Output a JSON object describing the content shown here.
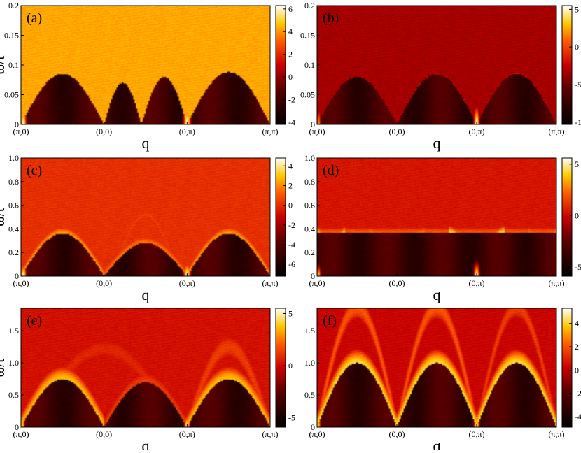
{
  "figure": {
    "x_tick_labels": [
      "(π,0)",
      "(0,0)",
      "(0,π)",
      "(π,π)"
    ],
    "x_label": "q",
    "y_label": "ω/t"
  },
  "chart_data": [
    {
      "type": "heatmap",
      "panel_label": "(a)",
      "xlabel": "q",
      "ylabel": "ω/t",
      "x_categories": [
        "(π,0)",
        "(0,0)",
        "(0,π)",
        "(π,π)"
      ],
      "ylim": [
        0,
        0.2
      ],
      "y_ticks": [
        0,
        0.05,
        0.1,
        0.15,
        0.2
      ],
      "y_tick_labels": [
        "0",
        "0.05",
        "0.1",
        "0.15",
        "0.2"
      ],
      "colorbar": {
        "range": [
          -4.2,
          6.3
        ],
        "ticks": [
          -4,
          -2,
          0,
          2,
          4,
          6
        ],
        "tick_labels": [
          "-4",
          "-2",
          "0",
          "2",
          "4",
          "6"
        ]
      },
      "background_level": 0.82,
      "curves": [
        {
          "kind": "dome",
          "x0": 0.0,
          "x1": 1.0,
          "peak": 0.085,
          "intensity": 0.85,
          "width": 0.003,
          "fill_below": 0.25
        },
        {
          "kind": "dome",
          "x0": 1.0,
          "x1": 1.45,
          "peak": 0.07,
          "intensity": 0.55,
          "width": 0.003,
          "fill_below": 0.3
        },
        {
          "kind": "dome",
          "x0": 1.45,
          "x1": 2.0,
          "peak": 0.08,
          "intensity": 0.8,
          "width": 0.003,
          "fill_below": 0.3
        },
        {
          "kind": "dome",
          "x0": 2.0,
          "x1": 3.0,
          "peak": 0.088,
          "intensity": 0.8,
          "width": 0.003,
          "fill_below": 0.28
        },
        {
          "kind": "dome",
          "x0": 0.15,
          "x1": 2.0,
          "peak": 0.15,
          "intensity": 0.45,
          "width": 0.004,
          "fill_below": 0
        },
        {
          "kind": "dome",
          "x0": 2.0,
          "x1": 3.0,
          "peak": 0.15,
          "intensity": 0.45,
          "width": 0.004,
          "fill_below": 0
        }
      ],
      "hot_spots": [
        {
          "x": 0.03,
          "intensity": 1.0,
          "width": 0.04,
          "height": 0.03
        },
        {
          "x": 2.0,
          "intensity": 1.0,
          "width": 0.05,
          "height": 0.035
        }
      ]
    },
    {
      "type": "heatmap",
      "panel_label": "(b)",
      "xlabel": "q",
      "ylabel": "",
      "x_categories": [
        "(π,0)",
        "(0,0)",
        "(0,π)",
        "(π,π)"
      ],
      "ylim": [
        0,
        0.2
      ],
      "y_ticks": [
        0,
        0.05,
        0.1,
        0.15,
        0.2
      ],
      "y_tick_labels": [
        "0",
        "0.05",
        "0.1",
        "0.15",
        "0.2"
      ],
      "colorbar": {
        "range": [
          -10.3,
          5.5
        ],
        "ticks": [
          -10,
          -5,
          0,
          5
        ],
        "tick_labels": [
          "-10",
          "-5",
          "0",
          "5"
        ]
      },
      "background_level": 0.45,
      "curves": [
        {
          "kind": "dome",
          "x0": 0.0,
          "x1": 1.0,
          "peak": 0.08,
          "intensity": 0.5,
          "width": 0.003,
          "fill_below": 0.1
        },
        {
          "kind": "dome",
          "x0": 1.0,
          "x1": 2.0,
          "peak": 0.085,
          "intensity": 0.55,
          "width": 0.003,
          "fill_below": 0.1
        },
        {
          "kind": "dome",
          "x0": 2.0,
          "x1": 3.0,
          "peak": 0.085,
          "intensity": 0.55,
          "width": 0.003,
          "fill_below": 0.1
        },
        {
          "kind": "dome",
          "x0": 0.05,
          "x1": 1.95,
          "peak": 0.19,
          "intensity": 0.35,
          "width": 0.004,
          "fill_below": 0
        }
      ],
      "hot_spots": [
        {
          "x": 0.02,
          "intensity": 0.8,
          "width": 0.03,
          "height": 0.03
        },
        {
          "x": 2.0,
          "intensity": 1.0,
          "width": 0.04,
          "height": 0.035
        }
      ]
    },
    {
      "type": "heatmap",
      "panel_label": "(c)",
      "xlabel": "q",
      "ylabel": "ω/t",
      "x_categories": [
        "(π,0)",
        "(0,0)",
        "(0,π)",
        "(π,π)"
      ],
      "ylim": [
        0,
        1.0
      ],
      "y_ticks": [
        0,
        0.2,
        0.4,
        0.6,
        0.8,
        1.0
      ],
      "y_tick_labels": [
        "0",
        "0.2",
        "0.4",
        "0.6",
        "0.8",
        "1.0"
      ],
      "colorbar": {
        "range": [
          -7.2,
          4.8
        ],
        "ticks": [
          -6,
          -4,
          -2,
          0,
          2,
          4
        ],
        "tick_labels": [
          "-6",
          "-4",
          "-2",
          "0",
          "2",
          "4"
        ]
      },
      "background_level": 0.62,
      "curves": [
        {
          "kind": "dome",
          "x0": 0.0,
          "x1": 1.0,
          "peak": 0.36,
          "intensity": 0.8,
          "width": 0.012,
          "fill_below": 0.25
        },
        {
          "kind": "dome",
          "x0": 1.0,
          "x1": 2.0,
          "peak": 0.28,
          "intensity": 0.75,
          "width": 0.012,
          "fill_below": 0.25
        },
        {
          "kind": "dome",
          "x0": 2.0,
          "x1": 3.0,
          "peak": 0.36,
          "intensity": 0.8,
          "width": 0.012,
          "fill_below": 0.25
        },
        {
          "kind": "dome",
          "x0": 1.1,
          "x1": 1.9,
          "peak": 0.52,
          "intensity": 0.65,
          "width": 0.012,
          "fill_below": 0
        },
        {
          "kind": "dome",
          "x0": 0.1,
          "x1": 1.9,
          "peak": 0.62,
          "intensity": 0.55,
          "width": 0.014,
          "fill_below": 0
        },
        {
          "kind": "dome",
          "x0": 2.0,
          "x1": 3.0,
          "peak": 0.7,
          "intensity": 0.55,
          "width": 0.014,
          "fill_below": 0
        }
      ],
      "hot_spots": [
        {
          "x": 0.03,
          "intensity": 1.0,
          "width": 0.04,
          "height": 0.12
        },
        {
          "x": 2.0,
          "intensity": 1.0,
          "width": 0.05,
          "height": 0.14
        }
      ]
    },
    {
      "type": "heatmap",
      "panel_label": "(d)",
      "xlabel": "q",
      "ylabel": "",
      "x_categories": [
        "(π,0)",
        "(0,0)",
        "(0,π)",
        "(π,π)"
      ],
      "ylim": [
        0,
        1.0
      ],
      "y_ticks": [
        0,
        0.2,
        0.4,
        0.6,
        0.8,
        1.0
      ],
      "y_tick_labels": [
        "0",
        "0.2",
        "0.4",
        "0.6",
        "0.8",
        "1.0"
      ],
      "colorbar": {
        "range": [
          -5.9,
          5.6
        ],
        "ticks": [
          -5,
          0,
          5
        ],
        "tick_labels": [
          "-5",
          "0",
          "5"
        ]
      },
      "background_level": 0.56,
      "curves": [
        {
          "kind": "flat",
          "x0": 0.0,
          "x1": 3.0,
          "peak": 0.37,
          "intensity": 0.7,
          "width": 0.01,
          "fill_below": 0.05
        },
        {
          "kind": "vdip",
          "x0": 0.0,
          "x1": 0.35,
          "peak": 0.37,
          "intensity": 0.85,
          "width": 0.01,
          "fill_below": 0
        },
        {
          "kind": "vdip",
          "x0": 0.65,
          "x1": 1.35,
          "peak": 0.37,
          "intensity": 0.75,
          "width": 0.01,
          "fill_below": 0
        },
        {
          "kind": "vdip",
          "x0": 1.65,
          "x1": 2.35,
          "peak": 0.37,
          "intensity": 0.9,
          "width": 0.01,
          "fill_below": 0
        },
        {
          "kind": "vdip",
          "x0": 2.65,
          "x1": 3.0,
          "peak": 0.37,
          "intensity": 0.75,
          "width": 0.01,
          "fill_below": 0
        }
      ],
      "hot_spots": [
        {
          "x": 0.02,
          "intensity": 0.9,
          "width": 0.03,
          "height": 0.1
        },
        {
          "x": 2.0,
          "intensity": 1.0,
          "width": 0.04,
          "height": 0.12
        }
      ]
    },
    {
      "type": "heatmap",
      "panel_label": "(e)",
      "xlabel": "q",
      "ylabel": "ω/t",
      "x_categories": [
        "(π,0)",
        "(0,0)",
        "(0,π)",
        "(π,π)"
      ],
      "ylim": [
        0,
        1.85
      ],
      "y_ticks": [
        0,
        0.5,
        1.0,
        1.5
      ],
      "y_tick_labels": [
        "0",
        "0.5",
        "1.0",
        "1.5"
      ],
      "colorbar": {
        "range": [
          -5.9,
          5.5
        ],
        "ticks": [
          -5,
          0,
          5
        ],
        "tick_labels": [
          "-5",
          "0",
          "5"
        ]
      },
      "background_level": 0.55,
      "curves": [
        {
          "kind": "dome",
          "x0": 0.0,
          "x1": 1.0,
          "peak": 0.75,
          "intensity": 0.85,
          "width": 0.02,
          "fill_below": 0.08
        },
        {
          "kind": "dome",
          "x0": 1.0,
          "x1": 2.0,
          "peak": 0.7,
          "intensity": 0.65,
          "width": 0.02,
          "fill_below": 0.08
        },
        {
          "kind": "dome",
          "x0": 2.0,
          "x1": 3.0,
          "peak": 0.75,
          "intensity": 0.85,
          "width": 0.02,
          "fill_below": 0.08
        },
        {
          "kind": "dome",
          "x0": 0.1,
          "x1": 1.9,
          "peak": 1.22,
          "intensity": 0.6,
          "width": 0.025,
          "fill_below": 0
        },
        {
          "kind": "dome",
          "x0": 2.0,
          "x1": 3.0,
          "peak": 1.25,
          "intensity": 0.65,
          "width": 0.025,
          "fill_below": 0
        }
      ],
      "hot_spots": [
        {
          "x": 0.02,
          "intensity": 0.9,
          "width": 0.03,
          "height": 0.2
        },
        {
          "x": 2.0,
          "intensity": 1.0,
          "width": 0.04,
          "height": 0.22
        }
      ]
    },
    {
      "type": "heatmap",
      "panel_label": "(f)",
      "xlabel": "q",
      "ylabel": "",
      "x_categories": [
        "(π,0)",
        "(0,0)",
        "(0,π)",
        "(π,π)"
      ],
      "ylim": [
        0,
        1.85
      ],
      "y_ticks": [
        0,
        0.5,
        1.0,
        1.5
      ],
      "y_tick_labels": [
        "0",
        "0.5",
        "1.0",
        "1.5"
      ],
      "colorbar": {
        "range": [
          -4.9,
          5.3
        ],
        "ticks": [
          -4,
          -2,
          0,
          2,
          4
        ],
        "tick_labels": [
          "-4",
          "-2",
          "0",
          "2",
          "4"
        ]
      },
      "background_level": 0.52,
      "curves": [
        {
          "kind": "dome",
          "x0": 0.0,
          "x1": 1.0,
          "peak": 1.0,
          "intensity": 0.9,
          "width": 0.02,
          "fill_below": 0.05
        },
        {
          "kind": "dome",
          "x0": 1.0,
          "x1": 2.0,
          "peak": 1.0,
          "intensity": 0.9,
          "width": 0.02,
          "fill_below": 0.05
        },
        {
          "kind": "dome",
          "x0": 2.0,
          "x1": 3.0,
          "peak": 1.0,
          "intensity": 0.9,
          "width": 0.02,
          "fill_below": 0.05
        },
        {
          "kind": "vdip",
          "x0": 0.0,
          "x1": 2.0,
          "peak": 1.85,
          "intensity": 0.0,
          "width": 0.02,
          "fill_below": 0
        },
        {
          "kind": "dome",
          "x0": 0.0,
          "x1": 1.0,
          "peak": 1.85,
          "intensity": 0.7,
          "width": 0.02,
          "fill_below": 0
        },
        {
          "kind": "dome",
          "x0": 1.0,
          "x1": 2.0,
          "peak": 1.85,
          "intensity": 0.7,
          "width": 0.02,
          "fill_below": 0
        },
        {
          "kind": "dome",
          "x0": 2.0,
          "x1": 3.0,
          "peak": 1.85,
          "intensity": 0.65,
          "width": 0.02,
          "fill_below": 0
        }
      ],
      "hot_spots": [
        {
          "x": 0.02,
          "intensity": 0.9,
          "width": 0.03,
          "height": 0.2
        },
        {
          "x": 2.0,
          "intensity": 1.0,
          "width": 0.04,
          "height": 0.22
        }
      ]
    }
  ]
}
